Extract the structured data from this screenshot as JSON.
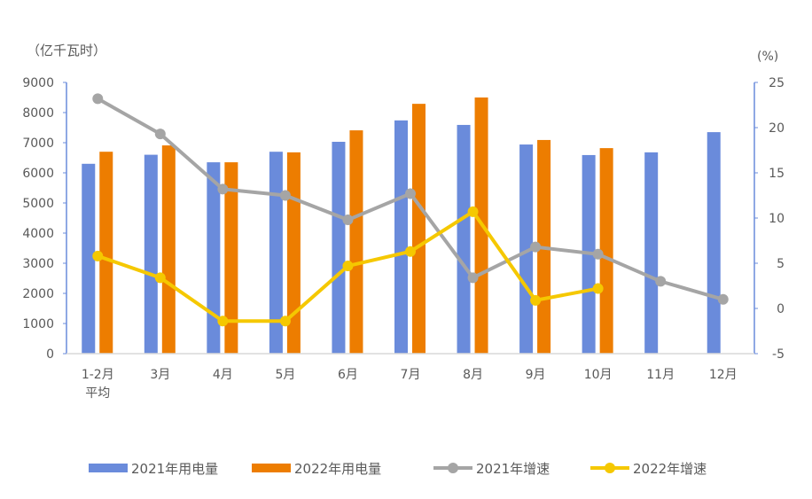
{
  "chart_data": {
    "type": "bar",
    "left_axis_unit": "（亿千瓦时）",
    "right_axis_unit": "(%)",
    "categories": [
      "1-2月\n平均",
      "3月",
      "4月",
      "5月",
      "6月",
      "7月",
      "8月",
      "9月",
      "10月",
      "11月",
      "12月"
    ],
    "ylim": [
      0,
      9000
    ],
    "yticks": [
      0,
      1000,
      2000,
      3000,
      4000,
      5000,
      6000,
      7000,
      8000,
      9000
    ],
    "y2lim": [
      -5,
      25
    ],
    "y2ticks": [
      -5,
      0,
      5,
      10,
      15,
      20,
      25
    ],
    "grid": false,
    "legend": "bottom",
    "series": [
      {
        "name": "2021年用电量",
        "type": "bar",
        "axis": "left",
        "color": "#6a8bdb",
        "values": [
          6300,
          6600,
          6350,
          6700,
          7030,
          7740,
          7590,
          6940,
          6590,
          6680,
          7350
        ]
      },
      {
        "name": "2022年用电量",
        "type": "bar",
        "axis": "left",
        "color": "#ed7d00",
        "values": [
          6700,
          6910,
          6350,
          6680,
          7410,
          8290,
          8500,
          7090,
          6820,
          null,
          null
        ]
      },
      {
        "name": "2021年增速",
        "type": "line",
        "axis": "right",
        "color": "#a5a5a5",
        "values": [
          23.2,
          19.3,
          13.2,
          12.5,
          9.8,
          12.7,
          3.4,
          6.8,
          6.0,
          3.0,
          1.0
        ]
      },
      {
        "name": "2022年增速",
        "type": "line",
        "axis": "right",
        "color": "#f5c800",
        "values": [
          5.8,
          3.4,
          -1.4,
          -1.4,
          4.7,
          6.3,
          10.7,
          0.9,
          2.2,
          null,
          null
        ]
      }
    ]
  }
}
